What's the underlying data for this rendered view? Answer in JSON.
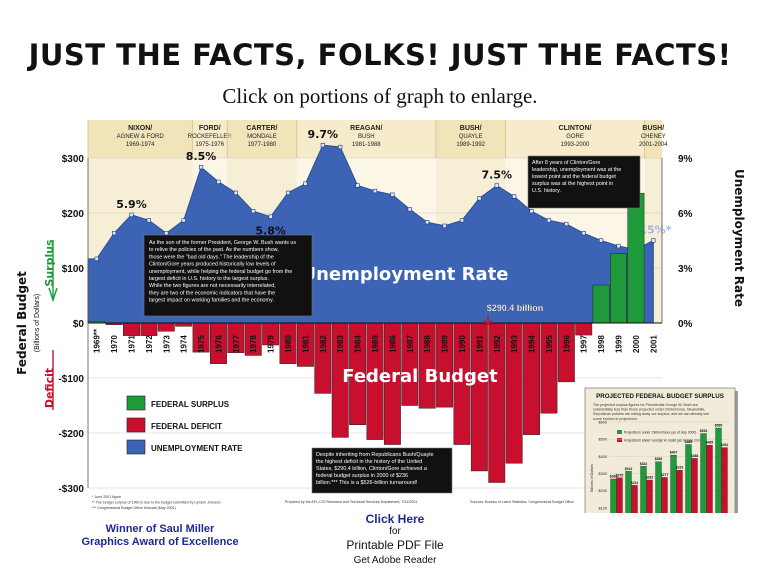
{
  "headline": "JUST THE FACTS, FOLKS! JUST THE FACTS!",
  "subhead": "Click on portions of graph to enlarge.",
  "chart_data": {
    "type": "bar+area",
    "left_axis": {
      "ticks": [
        "$300",
        "$200",
        "$100",
        "$0",
        "-$100",
        "-$200",
        "-$300"
      ],
      "values": [
        300,
        200,
        100,
        0,
        -100,
        -200,
        -300
      ],
      "range": [
        -300,
        300
      ]
    },
    "right_axis": {
      "ticks": [
        "9%",
        "6%",
        "3%",
        "0%"
      ],
      "values": [
        9,
        6,
        3,
        0
      ],
      "range": [
        0,
        9
      ],
      "title": "Unemployment Rate"
    },
    "left_title": "Federal Budget",
    "left_subtitle": "(Billions of Dollars)",
    "surplus_label": "Surplus",
    "deficit_label": "Deficit",
    "categories": [
      "1969**",
      "1970",
      "1971",
      "1972",
      "1973",
      "1974",
      "1975",
      "1976",
      "1977",
      "1978",
      "1979",
      "1980",
      "1981",
      "1982",
      "1983",
      "1984",
      "1985",
      "1986",
      "1987",
      "1988",
      "1989",
      "1990",
      "1991",
      "1992",
      "1993",
      "1994",
      "1995",
      "1996",
      "1997",
      "1998",
      "1999",
      "2000",
      "2001"
    ],
    "budget": [
      3,
      -3,
      -23,
      -23,
      -15,
      -6,
      -53,
      -74,
      -54,
      -59,
      -40,
      -74,
      -79,
      -128,
      -208,
      -185,
      -212,
      -221,
      -150,
      -155,
      -153,
      -221,
      -269,
      -290,
      -255,
      -203,
      -164,
      -107,
      -22,
      69,
      126,
      236,
      null
    ],
    "unemployment": [
      3.5,
      4.9,
      5.9,
      5.6,
      4.9,
      5.6,
      8.5,
      7.7,
      7.1,
      6.1,
      5.8,
      7.1,
      7.6,
      9.7,
      9.6,
      7.5,
      7.2,
      7.0,
      6.2,
      5.5,
      5.3,
      5.6,
      6.8,
      7.5,
      6.9,
      6.1,
      5.6,
      5.4,
      4.9,
      4.5,
      4.2,
      4.0,
      4.5
    ],
    "unemployment_labels": [
      "5.9%",
      "8.5%",
      "5.8%",
      "9.7%",
      "7.5%",
      "4.5%*"
    ],
    "series": [
      {
        "name": "FEDERAL SURPLUS",
        "color": "#1e9a3a"
      },
      {
        "name": "FEDERAL DEFICIT",
        "color": "#c8102e"
      },
      {
        "name": "UNEMPLOYMENT RATE",
        "color": "#3d63b4"
      }
    ],
    "administrations": [
      {
        "name": "NIXON/\nAGNEW & FORD",
        "years": "1969-1974"
      },
      {
        "name": "FORD/\nROCKEFELLER",
        "years": "1975-1976"
      },
      {
        "name": "CARTER/\nMONDALE",
        "years": "1977-1980"
      },
      {
        "name": "REAGAN/\nBUSH",
        "years": "1981-1988"
      },
      {
        "name": "BUSH/\nQUAYLE",
        "years": "1989-1992"
      },
      {
        "name": "CLINTON/\nGORE",
        "years": "1993-2000"
      },
      {
        "name": "BUSH/\nCHENEY",
        "years": "2001-2004"
      }
    ],
    "area_title": "Unemployment Rate",
    "budget_title": "Federal Budget",
    "deficit_callout": "$290.4 billion",
    "note_clinton": "After 8 years of Clinton/Gore leadership, unemployment was at the lowest point and the federal budget surplus was at the highest point in U.S. history.",
    "note_bush": "As the son of the former President, George W. Bush wants us to relive the policies of the past. As the numbers show, those were the \"bad old days.\" The leadership of the Clinton/Gore years produced historically low levels of unemployment, while helping the federal budget go from the largest deficit in U.S. history to the largest surplus. While the two figures are not necessarily interrelated, they are two of the economic indicators that have the largest impact on working families and the economy.",
    "note_deficit": "Despite inheriting from Republicans Bush/Quayle the highest deficit in the history of the United States, $290.4 billion, Clinton/Gore achieved a federal budget surplus in 2000 of $236 billion.*** This is a $526-billion turnaround!",
    "footnotes": [
      "* June 2001 figure",
      "** The budget surplus of 1969 is due to the budget submitted by Lyndon Johnson",
      "*** Congressional Budget Office forecast (May 2001)"
    ],
    "prepared_by": "Prepared by the AFL-CIO Research and Technical Services Department, 7/31/2001",
    "sources": "Sources: Bureau of Labor Statistics, Congressional Budget Office",
    "inset": {
      "title": "PROJECTED FEDERAL BUDGET SURPLUS",
      "description": "The projected surplus figures for Presidential George W. Bush are substantially less than those projected under Clinton/Gore. Meanwhile, Republican policies are eating away our surplus, and we can already see some erosion in projections.",
      "legend_a": "Projections under Clinton/Gore (as of July 2000)",
      "legend_b": "Projections under George W. Bush (as of May 2001)",
      "ylabel": "Billions of Dollars",
      "ticks": [
        "$600",
        "$500",
        "$400",
        "$300",
        "$200",
        "$100",
        "$0"
      ],
      "years": [
        "2001",
        "2002",
        "2003",
        "2004",
        "2005",
        "2006",
        "2007",
        "2008"
      ],
      "clinton": [
        268,
        313,
        342,
        369,
        407,
        469,
        533,
        565
      ],
      "bush": [
        275,
        231,
        262,
        277,
        319,
        388,
        465,
        451
      ],
      "source_note": "Source: Congressional Budget Office"
    }
  },
  "footer": {
    "award": "Winner of Saul Miller\nGraphics Award of Excellence",
    "click_here": "Click Here",
    "for": "for",
    "pdf": "Printable PDF File",
    "adobe": "Get Adobe Reader"
  }
}
